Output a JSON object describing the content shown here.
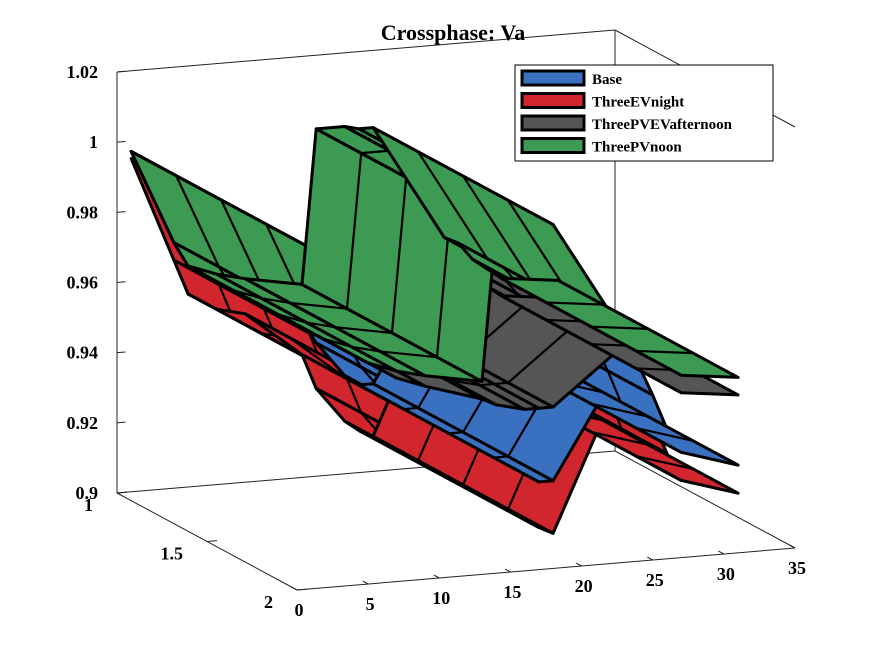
{
  "chart_data": {
    "type": "surface-3d",
    "title": "Crossphase: Va",
    "xlabel": "",
    "ylabel": "",
    "zlabel": "",
    "x_ticks": [
      "0",
      "5",
      "10",
      "15",
      "20",
      "25",
      "30",
      "35"
    ],
    "y_ticks": [
      "1",
      "1.5",
      "2"
    ],
    "z_ticks": [
      "0.9",
      "0.92",
      "0.94",
      "0.96",
      "0.98",
      "1",
      "1.02"
    ],
    "xlim": [
      0,
      35
    ],
    "ylim": [
      1,
      2
    ],
    "zlim": [
      0.9,
      1.02
    ],
    "legend_position": "top-right",
    "series": [
      {
        "name": "Base",
        "color": "#3a70c0",
        "x": [
          1,
          4,
          5,
          7,
          9,
          13,
          14,
          16,
          17,
          18,
          23,
          24,
          25,
          26,
          27,
          31
        ],
        "values": [
          0.997,
          0.97,
          0.963,
          0.96,
          0.958,
          0.945,
          0.938,
          0.928,
          0.925,
          0.925,
          0.958,
          0.956,
          0.947,
          0.937,
          0.93,
          0.925
        ]
      },
      {
        "name": "ThreeEVnight",
        "color": "#d2262e",
        "x": [
          1,
          4,
          5,
          7,
          9,
          13,
          14,
          16,
          17,
          18,
          23,
          24,
          25,
          26,
          27,
          31
        ],
        "values": [
          0.995,
          0.965,
          0.955,
          0.95,
          0.948,
          0.935,
          0.925,
          0.915,
          0.912,
          0.91,
          0.955,
          0.95,
          0.94,
          0.93,
          0.922,
          0.917
        ]
      },
      {
        "name": "ThreePVEVafternoon",
        "color": "#555555",
        "x": [
          1,
          4,
          5,
          7,
          9,
          13,
          14,
          16,
          17,
          18,
          23,
          24,
          25,
          26,
          27,
          31
        ],
        "values": [
          0.997,
          0.97,
          0.963,
          0.958,
          0.955,
          0.95,
          0.948,
          0.946,
          0.946,
          0.946,
          0.962,
          0.96,
          0.955,
          0.95,
          0.947,
          0.945
        ]
      },
      {
        "name": "ThreePVnoon",
        "color": "#3c9a52",
        "x": [
          1,
          4,
          5,
          7,
          9,
          13,
          14,
          16,
          17,
          18,
          23,
          24,
          25,
          26,
          27,
          31
        ],
        "values": [
          0.997,
          0.97,
          0.963,
          0.96,
          0.958,
          0.955,
          0.999,
          0.999,
          0.998,
          0.998,
          0.965,
          0.963,
          0.958,
          0.955,
          0.952,
          0.95
        ]
      }
    ]
  }
}
